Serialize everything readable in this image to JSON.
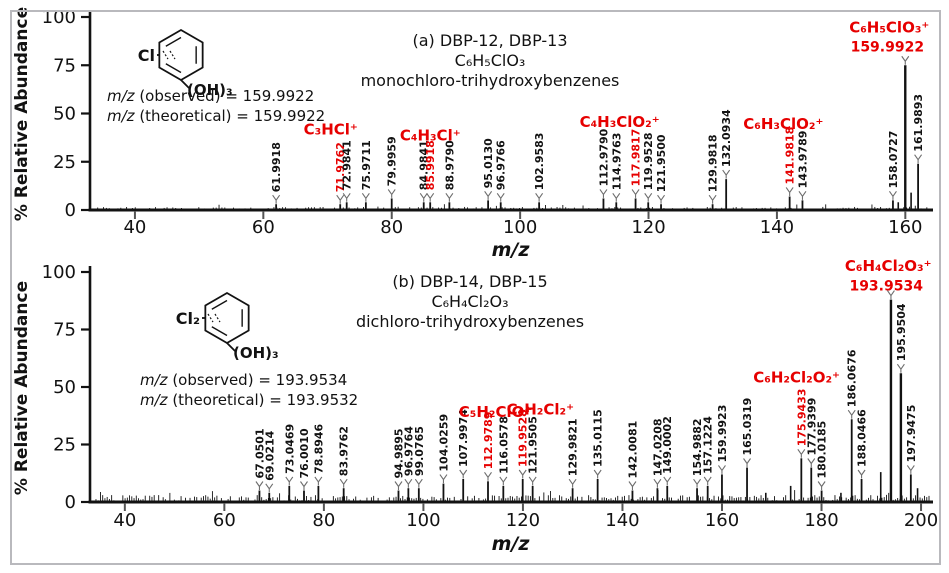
{
  "colors": {
    "red": "#e60000",
    "black": "#121212",
    "frame": "#b9b9bd",
    "marker": "#6e6e6e"
  },
  "chart_data": [
    {
      "type": "bar",
      "panel_id": "a",
      "title_lines": [
        "(a)  DBP-12, DBP-13",
        "C₆H₅ClO₃",
        "monochloro-trihydroxybenzenes"
      ],
      "structure": {
        "halogen_label": "Cl",
        "hydroxyl_label": "(OH)₃"
      },
      "mz_lines": [
        "m/z (observed) = 159.9922",
        "m/z (theoretical) = 159.9922"
      ],
      "xlabel": "m/z",
      "ylabel": "% Relative Abundance",
      "xlim": [
        33,
        164
      ],
      "ylim": [
        0,
        100
      ],
      "xticks": [
        40,
        60,
        80,
        100,
        120,
        140,
        160
      ],
      "yticks": [
        0,
        25,
        50,
        75,
        100
      ],
      "grid": false,
      "peaks": [
        {
          "mz": 61.9918,
          "rel": 3,
          "label": "61.9918",
          "red": false
        },
        {
          "mz": 71.9762,
          "rel": 3,
          "label": "71.9762",
          "red": true
        },
        {
          "mz": 72.9841,
          "rel": 4,
          "label": "72.9841",
          "red": false
        },
        {
          "mz": 75.9711,
          "rel": 4,
          "label": "75.9711",
          "red": false
        },
        {
          "mz": 79.9959,
          "rel": 6,
          "label": "79.9959",
          "red": false
        },
        {
          "mz": 84.9841,
          "rel": 4,
          "label": "84.9841",
          "red": false
        },
        {
          "mz": 85.9918,
          "rel": 4,
          "label": "85.9918",
          "red": true
        },
        {
          "mz": 88.979,
          "rel": 4,
          "label": "88.9790",
          "red": false
        },
        {
          "mz": 95.013,
          "rel": 5,
          "label": "95.0130",
          "red": false
        },
        {
          "mz": 96.9766,
          "rel": 4,
          "label": "96.9766",
          "red": false
        },
        {
          "mz": 102.9583,
          "rel": 4,
          "label": "102.9583",
          "red": false
        },
        {
          "mz": 112.979,
          "rel": 6,
          "label": "112.9790",
          "red": false
        },
        {
          "mz": 114.9763,
          "rel": 4,
          "label": "114.9763",
          "red": false
        },
        {
          "mz": 117.9817,
          "rel": 6,
          "label": "117.9817",
          "red": true
        },
        {
          "mz": 119.9528,
          "rel": 4,
          "label": "119.9528",
          "red": false
        },
        {
          "mz": 121.95,
          "rel": 3,
          "label": "121.9500",
          "red": false
        },
        {
          "mz": 129.9818,
          "rel": 3,
          "label": "129.9818",
          "red": false
        },
        {
          "mz": 132.0934,
          "rel": 16,
          "label": "132.0934",
          "red": false
        },
        {
          "mz": 141.9818,
          "rel": 7,
          "label": "141.9818",
          "red": true
        },
        {
          "mz": 143.9789,
          "rel": 5,
          "label": "143.9789",
          "red": false
        },
        {
          "mz": 158.0727,
          "rel": 5,
          "label": "158.0727",
          "red": false
        },
        {
          "mz": 159.9922,
          "rel": 75,
          "label": "",
          "red": true
        },
        {
          "mz": 161.9893,
          "rel": 24,
          "label": "161.9893",
          "red": false
        }
      ],
      "unlabeled_peaks": [
        [
          158.9,
          4
        ],
        [
          160.9,
          9
        ]
      ],
      "base_peak_label": {
        "text": "159.9922",
        "mz": 157.2,
        "rel_y": 82
      },
      "formula_annotations": [
        {
          "text": "C₃HCl⁺",
          "mz": 70.5,
          "rel_y": 39
        },
        {
          "text": "C₄H₃Cl⁺",
          "mz": 86,
          "rel_y": 36
        },
        {
          "text": "C₄H₃ClO₂⁺",
          "mz": 115.5,
          "rel_y": 43
        },
        {
          "text": "C₆H₃ClO₂⁺",
          "mz": 141,
          "rel_y": 42
        },
        {
          "text": "C₆H₅ClO₃⁺",
          "mz": 157.5,
          "rel_y": 92
        }
      ]
    },
    {
      "type": "bar",
      "panel_id": "b",
      "title_lines": [
        "(b) DBP-14, DBP-15",
        "C₆H₄Cl₂O₃",
        "dichloro-trihydroxybenzenes"
      ],
      "structure": {
        "halogen_label": "Cl₂",
        "hydroxyl_label": "(OH)₃"
      },
      "mz_lines": [
        "m/z (observed) = 193.9534",
        "m/z (theoretical) = 193.9532"
      ],
      "xlabel": "m/z",
      "ylabel": "% Relative Abundance",
      "xlim": [
        33,
        202
      ],
      "ylim": [
        0,
        100
      ],
      "xticks": [
        40,
        60,
        80,
        100,
        120,
        140,
        160,
        180,
        200
      ],
      "yticks": [
        0,
        25,
        50,
        75,
        100
      ],
      "grid": false,
      "peaks": [
        {
          "mz": 67.0501,
          "rel": 5,
          "label": "67.0501",
          "red": false
        },
        {
          "mz": 69.0214,
          "rel": 4,
          "label": "69.0214",
          "red": false
        },
        {
          "mz": 73.0469,
          "rel": 7,
          "label": "73.0469",
          "red": false
        },
        {
          "mz": 76.001,
          "rel": 5,
          "label": "76.0010",
          "red": false
        },
        {
          "mz": 78.8946,
          "rel": 7,
          "label": "78.8946",
          "red": false
        },
        {
          "mz": 83.9762,
          "rel": 6,
          "label": "83.9762",
          "red": false
        },
        {
          "mz": 94.9895,
          "rel": 5,
          "label": "94.9895",
          "red": false
        },
        {
          "mz": 96.9764,
          "rel": 6,
          "label": "96.9764",
          "red": false
        },
        {
          "mz": 99.0765,
          "rel": 6,
          "label": "99.0765",
          "red": false
        },
        {
          "mz": 104.0259,
          "rel": 8,
          "label": "104.0259",
          "red": false
        },
        {
          "mz": 107.9974,
          "rel": 10,
          "label": "107.9974",
          "red": false
        },
        {
          "mz": 112.9789,
          "rel": 9,
          "label": "112.9789",
          "red": true
        },
        {
          "mz": 116.0578,
          "rel": 7,
          "label": "116.0578",
          "red": false
        },
        {
          "mz": 119.9528,
          "rel": 10,
          "label": "119.9528",
          "red": true
        },
        {
          "mz": 121.9505,
          "rel": 7,
          "label": "121.9505",
          "red": false
        },
        {
          "mz": 129.9821,
          "rel": 6,
          "label": "129.9821",
          "red": false
        },
        {
          "mz": 135.0115,
          "rel": 10,
          "label": "135.0115",
          "red": false
        },
        {
          "mz": 142.0081,
          "rel": 5,
          "label": "142.0081",
          "red": false
        },
        {
          "mz": 147.0208,
          "rel": 6,
          "label": "147.0208",
          "red": false
        },
        {
          "mz": 149.0002,
          "rel": 7,
          "label": "149.0002",
          "red": false
        },
        {
          "mz": 154.9882,
          "rel": 6,
          "label": "154.9882",
          "red": false
        },
        {
          "mz": 157.1224,
          "rel": 7,
          "label": "157.1224",
          "red": false
        },
        {
          "mz": 159.9923,
          "rel": 12,
          "label": "159.9923",
          "red": false
        },
        {
          "mz": 165.0319,
          "rel": 15,
          "label": "165.0319",
          "red": false
        },
        {
          "mz": 175.9433,
          "rel": 19,
          "label": "175.9433",
          "red": true
        },
        {
          "mz": 177.9399,
          "rel": 15,
          "label": "177.9399",
          "red": false
        },
        {
          "mz": 180.0185,
          "rel": 5,
          "label": "180.0185",
          "red": false
        },
        {
          "mz": 186.0676,
          "rel": 36,
          "label": "186.0676",
          "red": false
        },
        {
          "mz": 188.0466,
          "rel": 10,
          "label": "188.0466",
          "red": false
        },
        {
          "mz": 193.9534,
          "rel": 88,
          "label": "",
          "red": true
        },
        {
          "mz": 195.9504,
          "rel": 56,
          "label": "195.9504",
          "red": false
        },
        {
          "mz": 197.9475,
          "rel": 12,
          "label": "197.9475",
          "red": false
        }
      ],
      "unlabeled_peaks": [
        [
          168.8,
          4
        ],
        [
          173.8,
          7
        ],
        [
          183.9,
          4
        ],
        [
          191.9,
          13
        ],
        [
          199.3,
          6
        ]
      ],
      "base_peak_label": {
        "text": "193.9534",
        "mz": 193,
        "rel_y": 92
      },
      "formula_annotations": [
        {
          "text": "C₅H₂ClO⁺",
          "mz": 114.5,
          "rel_y": 37
        },
        {
          "text": "C₄H₂Cl₂⁺",
          "mz": 123.5,
          "rel_y": 38
        },
        {
          "text": "C₆H₂Cl₂O₂⁺",
          "mz": 175,
          "rel_y": 52
        },
        {
          "text": "C₆H₄Cl₂O₃⁺",
          "mz": 193.4,
          "rel_y": 100.5
        }
      ]
    }
  ]
}
